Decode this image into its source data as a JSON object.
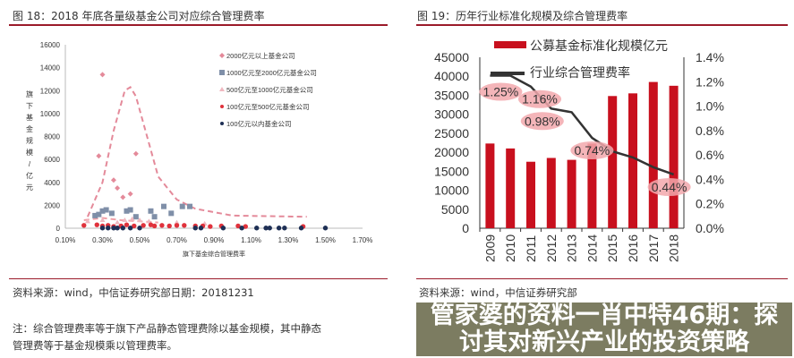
{
  "banner": {
    "text": "管家婆的资料一肖中特46期：探讨其对新兴产业的投资策略"
  },
  "left": {
    "title": "图 18：2018 年底各量级基金公司对应综合管理费率",
    "source": "资料来源：wind，中信证券研究部日期：20181231",
    "note1": "注：综合管理费率等于旗下产品静态管理费除以基金规模，其中静态",
    "note2": "管理费等于基金规模乘以管理费率。"
  },
  "right": {
    "title": "图 19：历年行业标准化规模及综合管理费率",
    "source": "资料来源：wind，中信证券研究部"
  },
  "chart_data": [
    {
      "type": "scatter",
      "xlabel": "旗下基金综合管理费率",
      "ylabel": "旗下基金规模/亿元",
      "xlim": [
        0.1,
        1.7
      ],
      "ylim": [
        0,
        16000
      ],
      "xticks": [
        "0.10%",
        "0.30%",
        "0.50%",
        "0.70%",
        "0.90%",
        "1.10%",
        "1.30%",
        "1.50%",
        "1.70%"
      ],
      "yticks": [
        "0",
        "2000",
        "4000",
        "6000",
        "8000",
        "10000",
        "12000",
        "14000",
        "16000"
      ],
      "legend_position": "top-right",
      "series": [
        {
          "name": "2000亿元以上基金公司",
          "color": "#e48a9a",
          "marker": "diamond",
          "points": [
            [
              0.3,
              13400
            ],
            [
              0.28,
              6300
            ],
            [
              0.48,
              6500
            ],
            [
              0.38,
              3500
            ],
            [
              0.45,
              3000
            ],
            [
              0.36,
              4200
            ],
            [
              0.41,
              2700
            ]
          ]
        },
        {
          "name": "1000亿元至2000亿元基金公司",
          "color": "#7f8fa8",
          "marker": "square",
          "points": [
            [
              0.26,
              1100
            ],
            [
              0.28,
              1200
            ],
            [
              0.3,
              1500
            ],
            [
              0.32,
              1600
            ],
            [
              0.35,
              1300
            ],
            [
              0.43,
              1500
            ],
            [
              0.45,
              1600
            ],
            [
              0.48,
              1000
            ],
            [
              0.56,
              1500
            ],
            [
              0.58,
              1000
            ],
            [
              0.63,
              1900
            ],
            [
              0.67,
              1300
            ],
            [
              0.73,
              1900
            ],
            [
              0.77,
              1900
            ]
          ]
        },
        {
          "name": "500亿元至1000亿元基金公司",
          "color": "#f0b8c0",
          "marker": "triangle",
          "points": [
            [
              0.22,
              600
            ],
            [
              0.3,
              700
            ],
            [
              0.38,
              500
            ],
            [
              0.42,
              700
            ],
            [
              0.46,
              800
            ],
            [
              0.5,
              700
            ],
            [
              0.55,
              600
            ],
            [
              0.7,
              500
            ],
            [
              0.85,
              400
            ]
          ]
        },
        {
          "name": "100亿元至500亿元基金公司",
          "color": "#e0323c",
          "marker": "circle",
          "points": [
            [
              0.2,
              250
            ],
            [
              0.27,
              300
            ],
            [
              0.3,
              200
            ],
            [
              0.33,
              250
            ],
            [
              0.36,
              150
            ],
            [
              0.4,
              200
            ],
            [
              0.43,
              300
            ],
            [
              0.47,
              200
            ],
            [
              0.52,
              250
            ],
            [
              0.56,
              300
            ],
            [
              0.58,
              200
            ],
            [
              0.62,
              250
            ],
            [
              0.66,
              200
            ],
            [
              0.7,
              250
            ],
            [
              0.74,
              250
            ],
            [
              0.8,
              200
            ],
            [
              0.84,
              200
            ],
            [
              0.88,
              150
            ],
            [
              0.94,
              200
            ],
            [
              1.03,
              200
            ],
            [
              1.07,
              150
            ],
            [
              1.38,
              150
            ]
          ]
        },
        {
          "name": "100亿元以内基金公司",
          "color": "#1e2f55",
          "marker": "circle",
          "points": [
            [
              0.3,
              20
            ],
            [
              0.33,
              20
            ],
            [
              0.36,
              20
            ],
            [
              0.38,
              20
            ],
            [
              0.41,
              20
            ],
            [
              0.45,
              20
            ],
            [
              0.5,
              20
            ],
            [
              0.8,
              20
            ],
            [
              0.83,
              20
            ],
            [
              0.95,
              20
            ],
            [
              1.05,
              20
            ],
            [
              1.13,
              20
            ],
            [
              1.18,
              20
            ],
            [
              1.2,
              20
            ],
            [
              1.25,
              20
            ],
            [
              1.28,
              20
            ],
            [
              1.37,
              20
            ],
            [
              1.5,
              20
            ]
          ]
        }
      ],
      "trendlines": [
        {
          "color": "#e48a9a",
          "points": [
            [
              0.22,
              1000
            ],
            [
              0.3,
              4000
            ],
            [
              0.36,
              8500
            ],
            [
              0.42,
              12000
            ],
            [
              0.45,
              12300
            ],
            [
              0.48,
              11500
            ],
            [
              0.54,
              8000
            ],
            [
              0.6,
              4500
            ],
            [
              0.7,
              2500
            ],
            [
              0.8,
              1700
            ],
            [
              1.0,
              1100
            ],
            [
              1.4,
              1000
            ]
          ]
        },
        {
          "color": "#f0a0a8",
          "points": [
            [
              0.2,
              700
            ],
            [
              0.3,
              900
            ],
            [
              0.4,
              700
            ],
            [
              0.5,
              600
            ],
            [
              0.6,
              500
            ]
          ]
        }
      ]
    },
    {
      "type": "bar+line",
      "categories": [
        "2009",
        "2010",
        "2011",
        "2012",
        "2013",
        "2014",
        "2015",
        "2016",
        "2017",
        "2018"
      ],
      "ylim": [
        0,
        45000
      ],
      "y2lim": [
        0,
        1.4
      ],
      "yticks": [
        "0",
        "5000",
        "10000",
        "15000",
        "20000",
        "25000",
        "30000",
        "35000",
        "40000",
        "45000"
      ],
      "y2ticks": [
        "0.0%",
        "0.2%",
        "0.4%",
        "0.6%",
        "0.8%",
        "1.0%",
        "1.2%",
        "1.4%"
      ],
      "legend_position": "top",
      "series": [
        {
          "name": "公募基金标准化规模亿元",
          "type": "bar",
          "color": "#c8101e",
          "values": [
            22300,
            21000,
            17500,
            18500,
            18000,
            22300,
            34800,
            35500,
            38500,
            37500
          ]
        },
        {
          "name": "行业综合管理费率",
          "type": "line",
          "axis": "right",
          "color": "#333333",
          "values": [
            1.25,
            1.25,
            1.16,
            0.98,
            0.95,
            0.74,
            0.63,
            0.58,
            0.5,
            0.44
          ]
        }
      ],
      "annotations": [
        {
          "index": 0,
          "text": "1.25%"
        },
        {
          "index": 2,
          "text": "1.16%"
        },
        {
          "index": 3,
          "text": "0.98%"
        },
        {
          "index": 5,
          "text": "0.74%"
        },
        {
          "index": 9,
          "text": "0.44%"
        }
      ]
    }
  ]
}
